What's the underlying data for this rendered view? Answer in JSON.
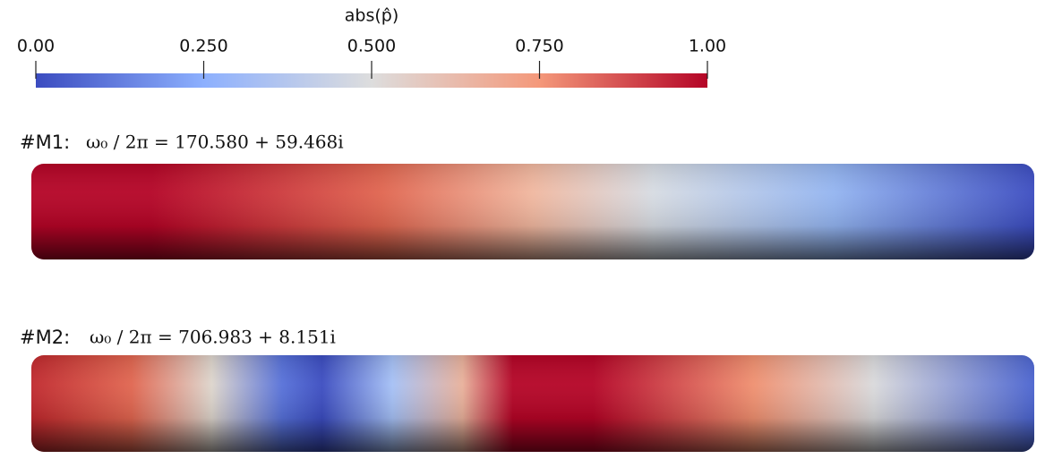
{
  "colorbar": {
    "title": "abs(p̂)",
    "range": [
      0,
      1
    ],
    "ticks": [
      {
        "value": 0,
        "label": "0.00"
      },
      {
        "value": 0.25,
        "label": "0.250"
      },
      {
        "value": 0.5,
        "label": "0.500"
      },
      {
        "value": 0.75,
        "label": "0.750"
      },
      {
        "value": 1,
        "label": "1.00"
      }
    ]
  },
  "modes": [
    {
      "label": "#M1:",
      "expression": "ω₀ / 2π = 170.580 + 59.468i"
    },
    {
      "label": "#M2:",
      "expression": "ω₀ / 2π = 706.983 + 8.151i"
    }
  ]
}
